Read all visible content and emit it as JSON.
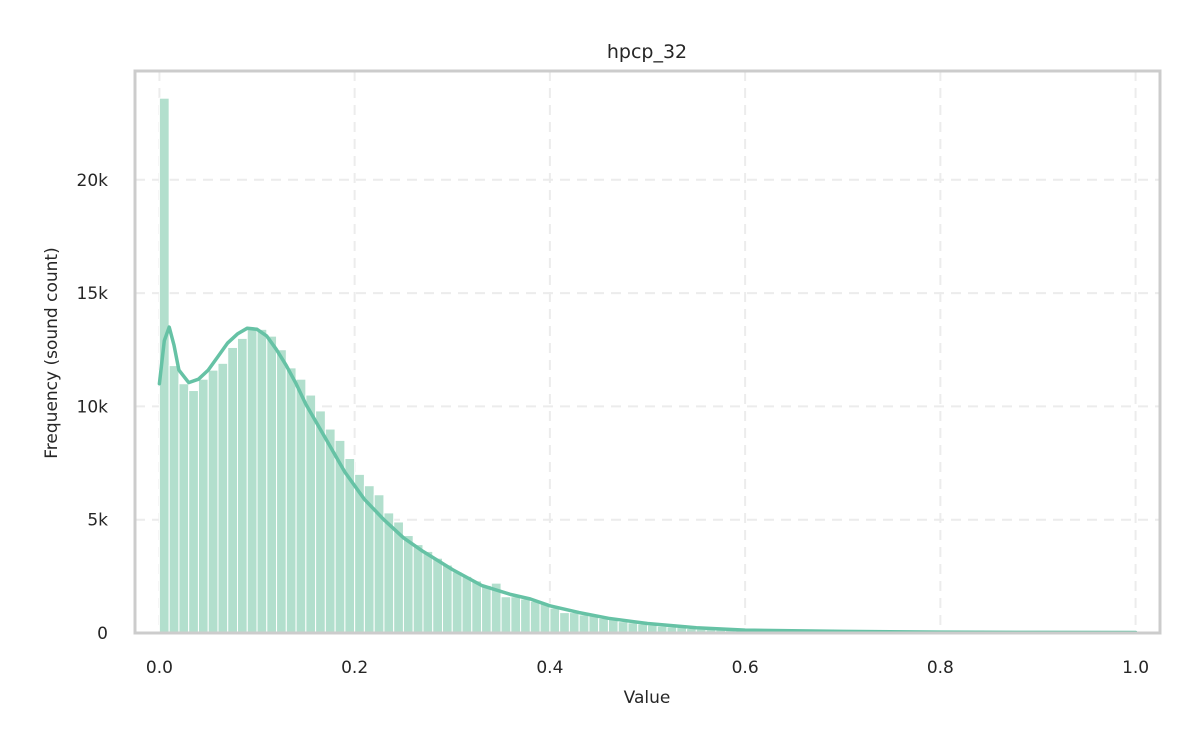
{
  "chart_data": {
    "type": "bar",
    "subtype": "histogram_with_kde",
    "title": "hpcp_32",
    "xlabel": "Value",
    "ylabel": "Frequency (sound count)",
    "xlim": [
      -0.025,
      1.025
    ],
    "ylim": [
      0,
      24800
    ],
    "xticks": [
      0.0,
      0.2,
      0.4,
      0.6,
      0.8,
      1.0
    ],
    "xtick_labels": [
      "0.0",
      "0.2",
      "0.4",
      "0.6",
      "0.8",
      "1.0"
    ],
    "yticks": [
      0,
      5000,
      10000,
      15000,
      20000
    ],
    "ytick_labels": [
      "0",
      "5k",
      "10k",
      "15k",
      "20k"
    ],
    "grid": true,
    "legend": null,
    "bin_start": 0.0,
    "bin_width": 0.01,
    "values": [
      23600,
      11800,
      11000,
      10700,
      11200,
      11600,
      11900,
      12600,
      13000,
      13500,
      13400,
      13100,
      12500,
      11700,
      11200,
      10500,
      9800,
      9000,
      8500,
      7700,
      7000,
      6500,
      6100,
      5300,
      4900,
      4300,
      3900,
      3600,
      3300,
      3000,
      2700,
      2500,
      2300,
      2100,
      2200,
      1600,
      1600,
      1500,
      1400,
      1300,
      1100,
      900,
      900,
      800,
      750,
      650,
      600,
      500,
      450,
      400,
      350,
      300,
      270,
      240,
      200,
      170,
      150,
      130,
      110,
      100,
      90,
      80,
      70,
      65,
      60,
      55,
      50,
      48,
      45,
      42,
      40,
      38,
      36,
      34,
      32,
      30,
      28,
      27,
      26,
      25,
      24,
      23,
      22,
      21,
      20,
      19,
      18,
      17,
      16,
      15,
      14,
      13,
      12,
      12,
      11,
      10,
      10,
      10,
      12,
      60
    ],
    "kde": {
      "x": [
        0.0,
        0.005,
        0.01,
        0.015,
        0.02,
        0.03,
        0.04,
        0.05,
        0.06,
        0.07,
        0.08,
        0.09,
        0.1,
        0.11,
        0.12,
        0.13,
        0.14,
        0.15,
        0.17,
        0.19,
        0.21,
        0.23,
        0.25,
        0.27,
        0.3,
        0.33,
        0.36,
        0.38,
        0.4,
        0.43,
        0.46,
        0.5,
        0.55,
        0.6,
        0.7,
        0.8,
        0.9,
        1.0
      ],
      "y": [
        11000,
        12900,
        13500,
        12700,
        11600,
        11050,
        11200,
        11600,
        12200,
        12800,
        13200,
        13450,
        13400,
        13100,
        12500,
        11800,
        11000,
        10100,
        8600,
        7100,
        5900,
        5000,
        4200,
        3600,
        2800,
        2100,
        1700,
        1500,
        1200,
        900,
        650,
        420,
        230,
        130,
        70,
        40,
        25,
        20
      ]
    },
    "colors": {
      "bar_fill": "#b2dfcd",
      "bar_edge": "#ffffff",
      "kde_line": "#66c2a5",
      "frame": "#cccccc",
      "grid": "#ececec"
    }
  }
}
